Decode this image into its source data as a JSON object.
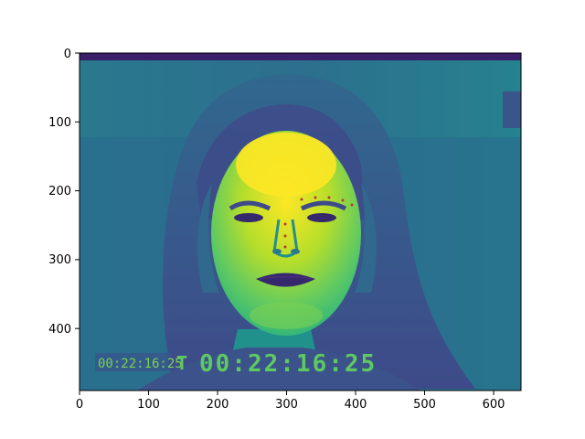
{
  "image": {
    "subject": "grayscale face photograph rendered with viridis colormap",
    "colormap": "viridis",
    "colors": {
      "dark": "#440154",
      "mid_dark": "#3b528b",
      "mid": "#21918c",
      "mid_light": "#5ec962",
      "bright": "#fde725",
      "background": "#2c6f8e"
    },
    "timecode_small": "00:22:16:25",
    "timecode_prefix": "T",
    "timecode_large": "00:22:16:25"
  },
  "axes": {
    "x_ticks": [
      "0",
      "100",
      "200",
      "300",
      "400",
      "500",
      "600"
    ],
    "y_ticks": [
      "0",
      "100",
      "200",
      "300",
      "400"
    ],
    "x_range": [
      0,
      640
    ],
    "y_range": [
      490,
      0
    ]
  }
}
